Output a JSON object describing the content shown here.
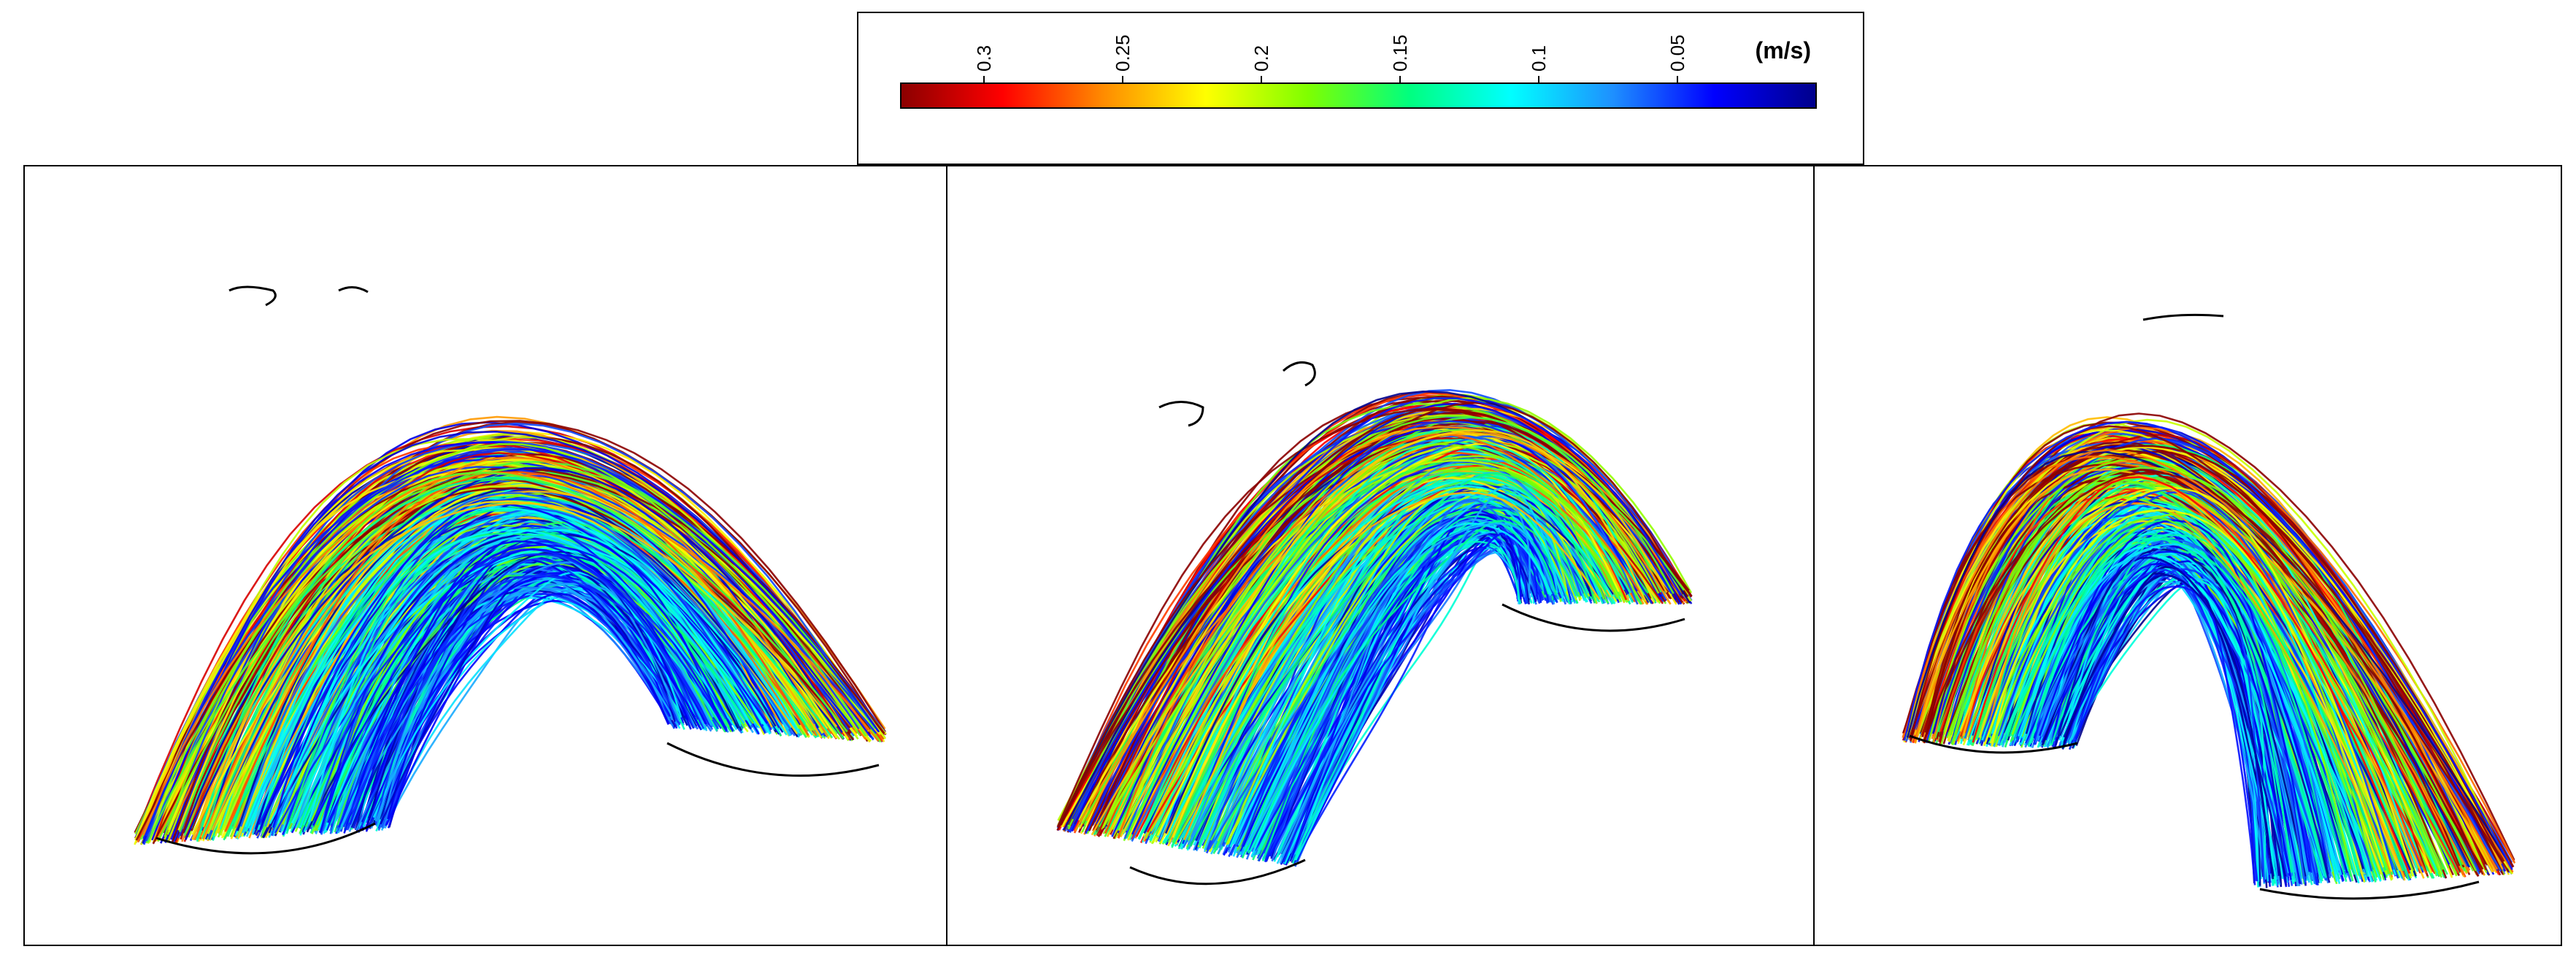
{
  "colorbar": {
    "unit": "(m/s)",
    "ticks": [
      {
        "label": "0.3",
        "value": 0.3
      },
      {
        "label": "0.25",
        "value": 0.25
      },
      {
        "label": "0.2",
        "value": 0.2
      },
      {
        "label": "0.15",
        "value": 0.15
      },
      {
        "label": "0.1",
        "value": 0.1
      },
      {
        "label": "0.05",
        "value": 0.05
      }
    ],
    "range": [
      0.0,
      0.33
    ],
    "direction": "high-left",
    "gradient_colors": [
      "#8b0000",
      "#ff0000",
      "#ff8c00",
      "#ffff00",
      "#7fff00",
      "#00ff7f",
      "#00ffff",
      "#1e90ff",
      "#0000ff",
      "#00008b"
    ]
  },
  "panels": [
    {
      "id": "left",
      "view": "aortic-arch-streamlines"
    },
    {
      "id": "middle",
      "view": "aortic-arch-streamlines"
    },
    {
      "id": "right",
      "view": "aortic-arch-streamlines"
    }
  ]
}
